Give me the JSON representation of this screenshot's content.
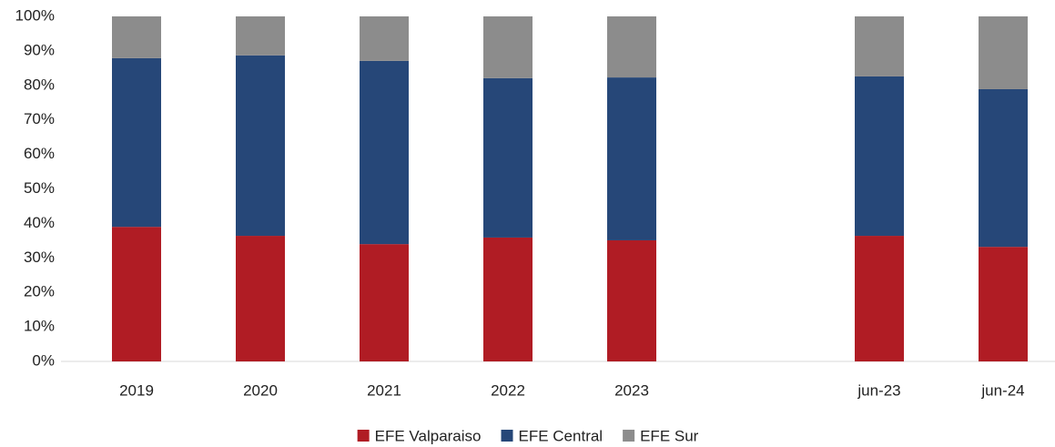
{
  "chart_data": {
    "type": "stacked_bar",
    "categories": [
      "2019",
      "2020",
      "2021",
      "2022",
      "2023",
      null,
      "jun-23",
      "jun-24"
    ],
    "series": [
      {
        "name": "EFE Valparaiso",
        "color": "#b01c24",
        "values": [
          39.0,
          36.4,
          34.0,
          35.9,
          35.1,
          null,
          36.4,
          33.2
        ]
      },
      {
        "name": "EFE Central",
        "color": "#264778",
        "values": [
          48.9,
          52.3,
          53.1,
          46.2,
          47.2,
          null,
          46.2,
          45.7
        ]
      },
      {
        "name": "EFE Sur",
        "color": "#8c8c8c",
        "values": [
          12.1,
          11.3,
          12.9,
          17.9,
          17.7,
          null,
          17.4,
          21.1
        ]
      }
    ],
    "ylim": [
      0,
      100
    ],
    "yticks": [
      {
        "value": 0,
        "label": "0%"
      },
      {
        "value": 10,
        "label": "10%"
      },
      {
        "value": 20,
        "label": "20%"
      },
      {
        "value": 30,
        "label": "30%"
      },
      {
        "value": 40,
        "label": "40%"
      },
      {
        "value": 50,
        "label": "50%"
      },
      {
        "value": 60,
        "label": "60%"
      },
      {
        "value": 70,
        "label": "70%"
      },
      {
        "value": 80,
        "label": "80%"
      },
      {
        "value": 90,
        "label": "90%"
      },
      {
        "value": 100,
        "label": "100%"
      }
    ],
    "legend": "bottom"
  }
}
